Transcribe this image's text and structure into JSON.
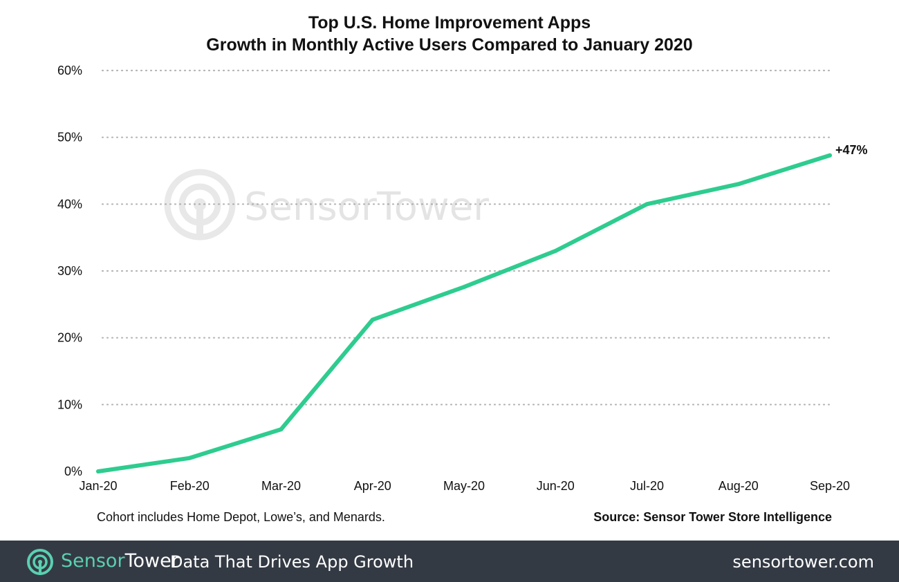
{
  "chart_data": {
    "type": "line",
    "title": "Top U.S. Home Improvement Apps",
    "subtitle": "Growth in Monthly Active Users Compared to January 2020",
    "categories": [
      "Jan-20",
      "Feb-20",
      "Mar-20",
      "Apr-20",
      "May-20",
      "Jun-20",
      "Jul-20",
      "Aug-20",
      "Sep-20"
    ],
    "series": [
      {
        "values": [
          0,
          2,
          6.3,
          22.7,
          27.6,
          33,
          40,
          43,
          47.3
        ]
      }
    ],
    "ylim": [
      0,
      60
    ],
    "yticks": [
      0,
      10,
      20,
      30,
      40,
      50,
      60
    ],
    "ytick_labels": [
      "0%",
      "10%",
      "20%",
      "30%",
      "40%",
      "50%",
      "60%"
    ],
    "grid": "horizontal dotted",
    "end_label": "+47%",
    "line_color": "#2ecc8f",
    "watermark": "SensorTower"
  },
  "notes": {
    "cohort": "Cohort includes Home Depot, Lowe’s, and Menards.",
    "source": "Source: Sensor Tower Store Intelligence"
  },
  "footer": {
    "brand_part1": "Sensor",
    "brand_part2": "Tower",
    "tagline": "Data That Drives App Growth",
    "url": "sensortower.com",
    "logo_icon": "sensortower-logo-icon",
    "background_color": "#343a44",
    "accent_color": "#5ad0b0"
  }
}
